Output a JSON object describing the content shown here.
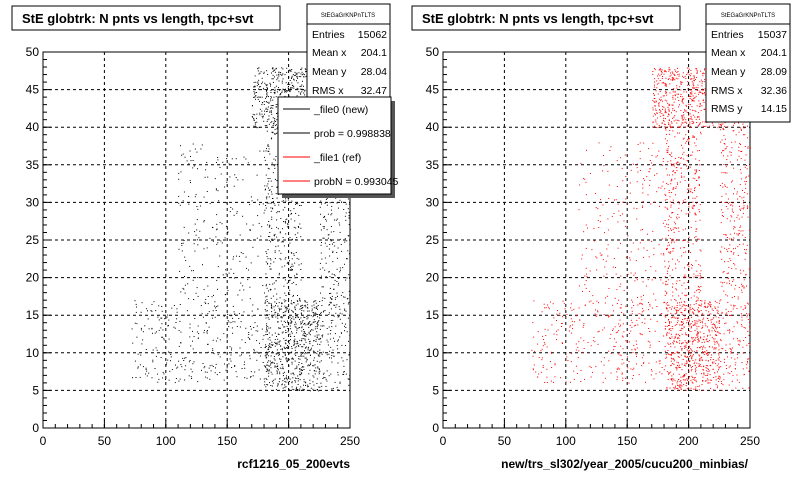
{
  "chart_data": [
    {
      "type": "scatter",
      "title": "StE globtrk: N pnts vs length, tpc+svt",
      "xlabel": "rcf1216_05_200evts",
      "ylabel": "",
      "xlim": [
        0,
        250
      ],
      "ylim": [
        0,
        50
      ],
      "x_ticks": [
        "0",
        "50",
        "100",
        "150",
        "200",
        "250"
      ],
      "y_ticks": [
        "0",
        "5",
        "10",
        "15",
        "20",
        "25",
        "30",
        "35",
        "40",
        "45",
        "50"
      ],
      "grid": true,
      "marker_color": "#000000",
      "stats": {
        "name": "StEGaGrKNPnTLTS",
        "rows": [
          {
            "label": "Entries",
            "value": "15062"
          },
          {
            "label": "Mean x",
            "value": "204.1"
          },
          {
            "label": "Mean y",
            "value": "28.04"
          },
          {
            "label": "RMS x",
            "value": "32.47"
          }
        ]
      },
      "legend": {
        "placement": "top-right",
        "entries": [
          {
            "label": "_file0 (new)",
            "color": "#000000"
          },
          {
            "label": "prob = 0.998838",
            "color": "#000000"
          },
          {
            "label": "_file1 (ref)",
            "color": "#ff0000"
          },
          {
            "label": "probN = 0.993045",
            "color": "#ff0000"
          }
        ]
      },
      "density_regions": [
        {
          "x": [
            170,
            230
          ],
          "y": [
            40,
            48
          ],
          "weight": 0.22
        },
        {
          "x": [
            180,
            225
          ],
          "y": [
            5,
            17
          ],
          "weight": 0.26
        },
        {
          "x": [
            180,
            210
          ],
          "y": [
            17,
            40
          ],
          "weight": 0.14
        },
        {
          "x": [
            225,
            250
          ],
          "y": [
            5,
            47
          ],
          "weight": 0.18
        },
        {
          "x": [
            72,
            180
          ],
          "y": [
            6,
            17
          ],
          "weight": 0.12
        },
        {
          "x": [
            110,
            180
          ],
          "y": [
            17,
            38
          ],
          "weight": 0.08
        }
      ]
    },
    {
      "type": "scatter",
      "title": "StE globtrk: N pnts vs length, tpc+svt",
      "xlabel": "new/trs_sl302/year_2005/cucu200_minbias/",
      "ylabel": "",
      "xlim": [
        0,
        250
      ],
      "ylim": [
        0,
        50
      ],
      "x_ticks": [
        "0",
        "50",
        "100",
        "150",
        "200",
        "250"
      ],
      "y_ticks": [
        "0",
        "5",
        "10",
        "15",
        "20",
        "25",
        "30",
        "35",
        "40",
        "45",
        "50"
      ],
      "grid": true,
      "marker_color": "#ff0000",
      "stats": {
        "name": "StEGaGrKNPnTLTS",
        "rows": [
          {
            "label": "Entries",
            "value": "15037"
          },
          {
            "label": "Mean x",
            "value": "204.1"
          },
          {
            "label": "Mean y",
            "value": "28.09"
          },
          {
            "label": "RMS x",
            "value": "32.36"
          },
          {
            "label": "RMS y",
            "value": "14.15"
          }
        ]
      },
      "density_regions": [
        {
          "x": [
            170,
            230
          ],
          "y": [
            40,
            48
          ],
          "weight": 0.22
        },
        {
          "x": [
            180,
            225
          ],
          "y": [
            5,
            17
          ],
          "weight": 0.26
        },
        {
          "x": [
            180,
            210
          ],
          "y": [
            17,
            40
          ],
          "weight": 0.14
        },
        {
          "x": [
            225,
            250
          ],
          "y": [
            5,
            47
          ],
          "weight": 0.18
        },
        {
          "x": [
            72,
            180
          ],
          "y": [
            6,
            17
          ],
          "weight": 0.12
        },
        {
          "x": [
            110,
            180
          ],
          "y": [
            17,
            38
          ],
          "weight": 0.08
        }
      ]
    }
  ]
}
